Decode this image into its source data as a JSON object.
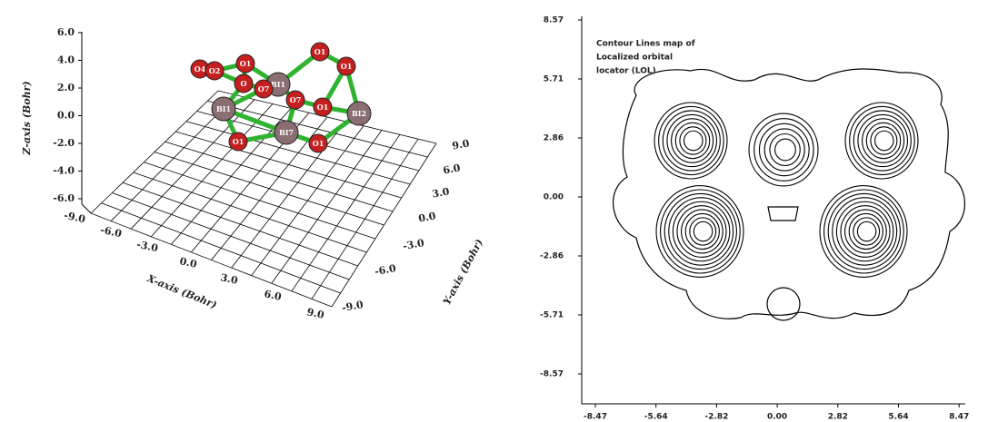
{
  "left_panel": {
    "z_axis_title": "Z-axis (Bohr)",
    "x_axis_title": "X-axis (Bohr)",
    "y_axis_title": "Y-axis (Bohr)",
    "z_ticks": [
      "6.0",
      "4.0",
      "2.0",
      "0.0",
      "-2.0",
      "-4.0",
      "-6.0"
    ],
    "x_ticks": [
      "-9.0",
      "-6.0",
      "-3.0",
      "0.0",
      "3.0",
      "6.0",
      "9.0"
    ],
    "y_ticks": [
      "-9.0",
      "-6.0",
      "-3.0",
      "0.0",
      "3.0",
      "6.0",
      "9.0"
    ],
    "atoms": [
      "O1",
      "O1",
      "O4",
      "BI1",
      "O1",
      "O7",
      "O",
      "O7",
      "BI1",
      "O1",
      "BI2",
      "BI7",
      "O1",
      "O1",
      "O2"
    ]
  },
  "right_panel": {
    "annotation": [
      "Contour Lines map of",
      "Localized orbital",
      "locator (LOL)"
    ],
    "y_ticks": [
      "8.57",
      "5.71",
      "2.86",
      "0.00",
      "-2.86",
      "-5.71",
      "-8.57"
    ],
    "x_ticks": [
      "-8.47",
      "-5.64",
      "-2.82",
      "0.00",
      "2.82",
      "5.64",
      "8.47"
    ]
  }
}
